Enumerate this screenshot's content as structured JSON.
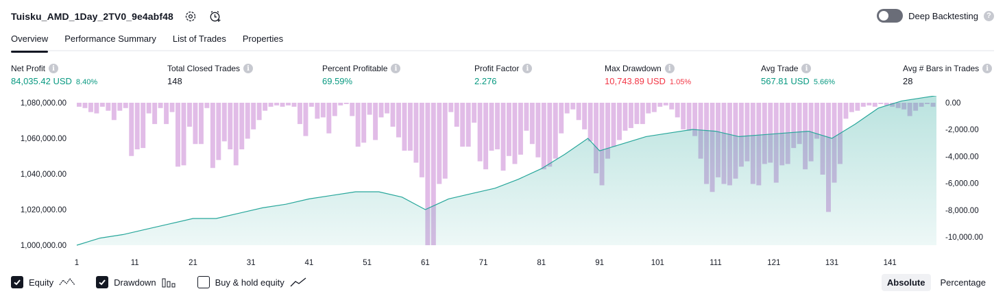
{
  "header": {
    "strategy_name": "Tuisku_AMD_1Day_2TV0_9e4abf48",
    "settings_icon": "settings-icon",
    "alert_icon": "add-alert-clock-icon"
  },
  "deep_backtesting": {
    "label": "Deep Backtesting",
    "enabled": false,
    "help_icon": "?"
  },
  "tabs": [
    {
      "label": "Overview",
      "active": true
    },
    {
      "label": "Performance Summary",
      "active": false
    },
    {
      "label": "List of Trades",
      "active": false
    },
    {
      "label": "Properties",
      "active": false
    }
  ],
  "stats": [
    {
      "label": "Net Profit",
      "value": "84,035.42 USD",
      "pct": "8.40%",
      "color": "#089981"
    },
    {
      "label": "Total Closed Trades",
      "value": "148",
      "pct": "",
      "color": "#131722"
    },
    {
      "label": "Percent Profitable",
      "value": "69.59%",
      "pct": "",
      "color": "#089981"
    },
    {
      "label": "Profit Factor",
      "value": "2.276",
      "pct": "",
      "color": "#089981"
    },
    {
      "label": "Max Drawdown",
      "value": "10,743.89 USD",
      "pct": "1.05%",
      "color": "#f23645"
    },
    {
      "label": "Avg Trade",
      "value": "567.81 USD",
      "pct": "5.66%",
      "color": "#089981"
    },
    {
      "label": "Avg # Bars in Trades",
      "value": "28",
      "pct": "",
      "color": "#131722"
    }
  ],
  "chart_data": {
    "type": "area",
    "x_label": "",
    "x_ticks": [
      1,
      11,
      21,
      31,
      41,
      51,
      61,
      71,
      81,
      91,
      101,
      111,
      121,
      131,
      141
    ],
    "left_axis": {
      "ticks": [
        "1,080,000.00",
        "1,060,000.00",
        "1,040,000.00",
        "1,020,000.00",
        "1,000,000.00"
      ],
      "range": [
        1000000,
        1080000
      ]
    },
    "right_axis": {
      "ticks": [
        "0.00",
        "-2,000.00",
        "-4,000.00",
        "-6,000.00",
        "-8,000.00",
        "-10,000.00"
      ],
      "range": [
        -10700,
        0
      ]
    },
    "series": [
      {
        "type": "area",
        "color": "#26a69a",
        "x": [
          1,
          5,
          9,
          13,
          17,
          21,
          25,
          29,
          33,
          37,
          41,
          45,
          49,
          53,
          57,
          61,
          65,
          69,
          73,
          77,
          81,
          85,
          89,
          91,
          95,
          99,
          103,
          107,
          111,
          115,
          119,
          123,
          127,
          131,
          135,
          139,
          143,
          147,
          149
        ],
        "values": [
          1000000,
          1004000,
          1006000,
          1009000,
          1012000,
          1015000,
          1015000,
          1018000,
          1021000,
          1023000,
          1026000,
          1028000,
          1030000,
          1030000,
          1027000,
          1020000,
          1026000,
          1029000,
          1032000,
          1037000,
          1043000,
          1051000,
          1060000,
          1053000,
          1057000,
          1061000,
          1063000,
          1065000,
          1064000,
          1061000,
          1062000,
          1063000,
          1064000,
          1060000,
          1068000,
          1077000,
          1081000,
          1083000,
          1084000
        ]
      },
      {
        "type": "bar",
        "color": "#ce93d8",
        "values": [
          -300,
          -400,
          -700,
          -800,
          -300,
          -600,
          -1300,
          -600,
          -400,
          -4000,
          -3500,
          -3400,
          -800,
          -1600,
          -400,
          -1600,
          -700,
          -4800,
          -4700,
          -1800,
          -3100,
          -3100,
          -400,
          -4900,
          -4300,
          -2900,
          -3500,
          -4700,
          -3500,
          -2700,
          -2000,
          -1300,
          -600,
          -300,
          -200,
          -300,
          -200,
          -300,
          -1600,
          -2500,
          -300,
          -1200,
          -1100,
          -2300,
          -1000,
          -200,
          -100,
          -1000,
          -3300,
          -3000,
          -900,
          -2800,
          -1100,
          -800,
          -1800,
          -2600,
          -3600,
          -3600,
          -4500,
          -5600,
          -10700,
          -10700,
          -6100,
          -5700,
          -700,
          -1800,
          -3300,
          -3300,
          -1500,
          -4400,
          -5000,
          -3600,
          -3500,
          -5100,
          -4000,
          -4600,
          -3900,
          -2100,
          -3100,
          -4100,
          -5000,
          -4800,
          -4200,
          -2300,
          -800,
          -500,
          -1300,
          -2000,
          -2900,
          -5300,
          -6200,
          -4200,
          -3300,
          -2800,
          -2100,
          -1900,
          -1600,
          -1600,
          -800,
          -700,
          -300,
          -200,
          -500,
          -1100,
          -2000,
          -2100,
          -2500,
          -4200,
          -6100,
          -6700,
          -5600,
          -6100,
          -6200,
          -5700,
          -4800,
          -4400,
          -6100,
          -6200,
          -4600,
          -4500,
          -6000,
          -4700,
          -4600,
          -3400,
          -3100,
          -5000,
          -4400,
          -2700,
          -5400,
          -8200,
          -6000,
          -4600,
          -1200,
          -700,
          -600,
          -300,
          -200,
          -300,
          -100,
          -200,
          -300,
          -400,
          -500,
          -1000,
          -600,
          -300,
          -100,
          -300
        ]
      }
    ]
  },
  "legend": [
    {
      "label": "Equity",
      "checked": true,
      "icon": "equity-line-icon"
    },
    {
      "label": "Drawdown",
      "checked": true,
      "icon": "drawdown-bars-icon"
    },
    {
      "label": "Buy & hold equity",
      "checked": false,
      "icon": "buy-hold-line-icon"
    }
  ],
  "mode": {
    "absolute": "Absolute",
    "percentage": "Percentage",
    "selected": "Absolute"
  }
}
